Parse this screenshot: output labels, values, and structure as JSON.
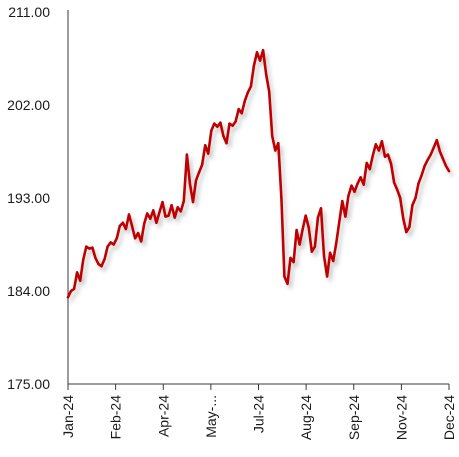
{
  "chart_data": {
    "type": "line",
    "title": "",
    "xlabel": "",
    "ylabel": "",
    "ylim": [
      175,
      211
    ],
    "y_ticks": [
      "175.00",
      "184.00",
      "193.00",
      "202.00",
      "211.00"
    ],
    "y_tick_values": [
      175,
      184,
      193,
      202,
      211
    ],
    "x_ticks": [
      "Jan-24",
      "Feb-24",
      "Apr-24",
      "May-...",
      "Jul-24",
      "Aug-24",
      "Sep-24",
      "Nov-24",
      "Dec-24"
    ],
    "x_tick_values": [
      0,
      0.125,
      0.25,
      0.375,
      0.5,
      0.625,
      0.75,
      0.875,
      1.0
    ],
    "grid": false,
    "legend": "none",
    "colors": {
      "line": "#c00000",
      "axis": "#3a3a3a"
    },
    "series": [
      {
        "x": [
          0.0,
          0.008,
          0.016,
          0.024,
          0.032,
          0.04,
          0.048,
          0.056,
          0.064,
          0.072,
          0.08,
          0.088,
          0.096,
          0.104,
          0.112,
          0.12,
          0.128,
          0.136,
          0.144,
          0.152,
          0.16,
          0.168,
          0.176,
          0.184,
          0.192,
          0.2,
          0.208,
          0.216,
          0.224,
          0.232,
          0.24,
          0.248,
          0.256,
          0.264,
          0.272,
          0.28,
          0.288,
          0.296,
          0.304,
          0.312,
          0.32,
          0.328,
          0.336,
          0.344,
          0.352,
          0.36,
          0.368,
          0.376,
          0.384,
          0.392,
          0.4,
          0.408,
          0.416,
          0.424,
          0.432,
          0.44,
          0.448,
          0.456,
          0.464,
          0.472,
          0.48,
          0.488,
          0.496,
          0.504,
          0.512,
          0.52,
          0.528,
          0.536,
          0.544,
          0.552,
          0.56,
          0.568,
          0.576,
          0.584,
          0.592,
          0.6,
          0.608,
          0.616,
          0.624,
          0.632,
          0.64,
          0.648,
          0.656,
          0.664,
          0.672,
          0.68,
          0.688,
          0.696,
          0.704,
          0.712,
          0.72,
          0.728,
          0.736,
          0.744,
          0.752,
          0.76,
          0.768,
          0.776,
          0.784,
          0.792,
          0.8,
          0.808,
          0.816,
          0.824,
          0.832,
          0.84,
          0.848,
          0.856,
          0.864,
          0.872,
          0.88,
          0.888,
          0.896,
          0.904,
          0.912,
          0.92,
          0.928,
          0.936,
          0.944,
          0.952,
          0.96,
          0.968,
          0.976,
          0.984,
          0.992,
          1.0
        ],
        "values": [
          183.4,
          184.0,
          184.2,
          185.8,
          185.0,
          187.0,
          188.3,
          188.1,
          188.2,
          187.2,
          186.6,
          186.4,
          187.1,
          188.3,
          188.7,
          188.5,
          189.1,
          190.3,
          190.6,
          190.0,
          191.4,
          190.3,
          189.1,
          189.6,
          188.8,
          190.5,
          191.5,
          191.0,
          191.8,
          190.6,
          191.6,
          192.6,
          191.2,
          191.3,
          192.3,
          191.1,
          192.1,
          191.7,
          192.7,
          197.2,
          194.4,
          192.6,
          194.7,
          195.5,
          196.2,
          198.1,
          197.3,
          199.5,
          200.2,
          199.9,
          200.3,
          199.0,
          198.3,
          200.2,
          200.0,
          200.4,
          201.6,
          201.2,
          202.4,
          203.2,
          203.8,
          205.8,
          207.1,
          206.3,
          207.3,
          205.0,
          203.3,
          199.0,
          197.6,
          198.3,
          193.0,
          185.4,
          184.7,
          187.2,
          186.8,
          189.9,
          188.5,
          190.0,
          191.3,
          190.1,
          187.8,
          188.3,
          191.1,
          192.0,
          187.4,
          185.4,
          187.7,
          186.9,
          188.6,
          190.7,
          192.7,
          191.2,
          193.2,
          194.2,
          193.6,
          194.4,
          195.0,
          194.3,
          196.4,
          195.8,
          197.1,
          198.2,
          197.6,
          198.5,
          197.0,
          197.2,
          196.3,
          194.5,
          193.8,
          193.0,
          191.0,
          189.7,
          190.2,
          192.3,
          193.0,
          194.4,
          195.2,
          196.1,
          196.7,
          197.2,
          197.9,
          198.6,
          197.5,
          196.8,
          196.1,
          195.6
        ]
      }
    ]
  }
}
